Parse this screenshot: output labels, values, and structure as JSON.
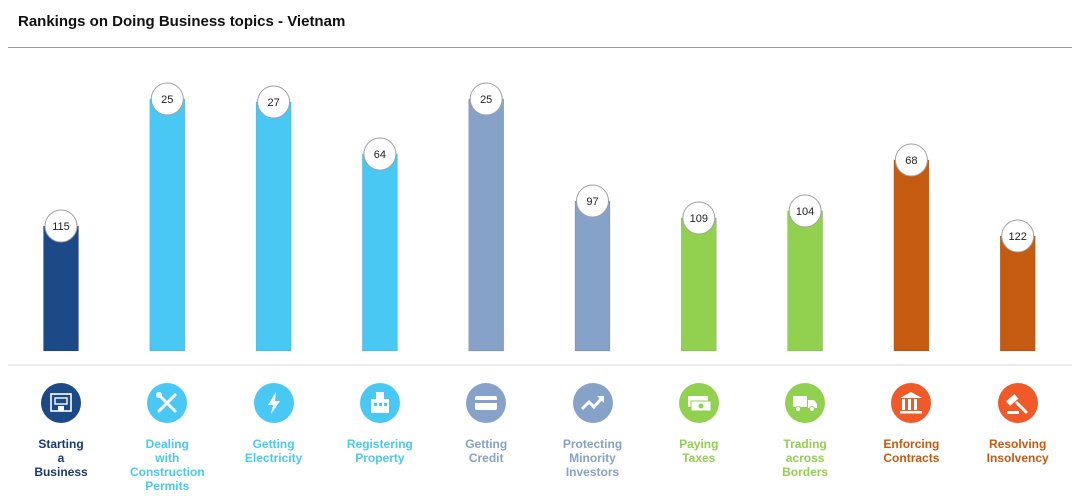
{
  "header": {
    "title": "Rankings on Doing Business topics - Vietnam"
  },
  "chart_data": {
    "type": "bar",
    "title": "Rankings on Doing Business topics - Vietnam",
    "categories": [
      "Starting\na\nBusiness",
      "Dealing\nwith\nConstruction\nPermits",
      "Getting\nElectricity",
      "Registering\nProperty",
      "Getting\nCredit",
      "Protecting\nMinority\nInvestors",
      "Paying\nTaxes",
      "Trading\nacross\nBorders",
      "Enforcing\nContracts",
      "Resolving\nInsolvency"
    ],
    "values": [
      115,
      25,
      27,
      64,
      25,
      97,
      109,
      104,
      68,
      122
    ],
    "colors": [
      "#1b4a87",
      "#4ac8f4",
      "#4ac8f4",
      "#4ac8f4",
      "#86a2c9",
      "#86a2c9",
      "#92d050",
      "#92d050",
      "#c55a11",
      "#c55a11"
    ],
    "label_colors": [
      "#1b3a6b",
      "#4ac8f4",
      "#4ac8f4",
      "#4ac8f4",
      "#86a2c9",
      "#86a2c9",
      "#92d050",
      "#92d050",
      "#c55a11",
      "#c55a11"
    ],
    "icons": [
      "building-icon",
      "tools-icon",
      "lightning-icon",
      "office-building-icon",
      "credit-card-icon",
      "trend-arrow-icon",
      "money-stack-icon",
      "truck-icon",
      "courthouse-icon",
      "gavel-icon"
    ],
    "icon_colors": [
      "#1b4a87",
      "#4ac8f4",
      "#4ac8f4",
      "#4ac8f4",
      "#86a2c9",
      "#86a2c9",
      "#92d050",
      "#92d050",
      "#f05a28",
      "#f05a28"
    ],
    "ylim": [
      0,
      190
    ],
    "grid": false,
    "legend": "none"
  }
}
